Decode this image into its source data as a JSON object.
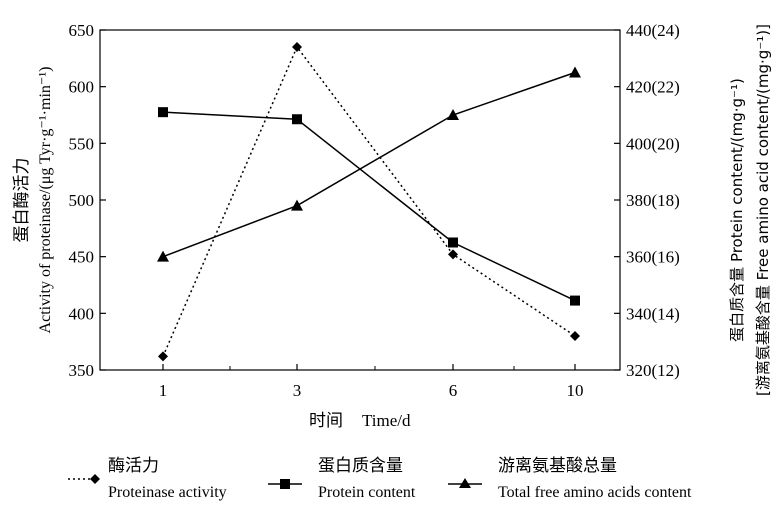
{
  "chart_data": {
    "type": "line",
    "categories": [
      "1",
      "3",
      "6",
      "10"
    ],
    "x_axis": {
      "label": "时间 Time/d",
      "label_cn": "时间",
      "label_en": "Time/d",
      "ticks": [
        "1",
        "3",
        "6",
        "10"
      ]
    },
    "y_left": {
      "label_cn": "蛋白酶活力",
      "label_en": "Activity of proteinase/(μg Tyr·g⁻¹·min⁻¹)",
      "ylim": [
        350,
        650
      ],
      "ticks": [
        350,
        400,
        450,
        500,
        550,
        600,
        650
      ],
      "tick_labels": [
        "350",
        "400",
        "450",
        "500",
        "550",
        "600",
        "650"
      ]
    },
    "y_right": {
      "label_line1": "蛋白质含量 Protein content/(mg·g⁻¹)",
      "label_line2": "[游离氨基酸含量 Free amino acid content/(mg·g⁻¹)]",
      "ylim": [
        320,
        440
      ],
      "ticks": [
        320,
        340,
        360,
        380,
        400,
        420,
        440
      ],
      "tick_labels": [
        "320(12)",
        "340(14)",
        "360(16)",
        "380(18)",
        "400(20)",
        "420(22)",
        "440(24)"
      ]
    },
    "series": [
      {
        "name": "酶活力 Proteinase activity",
        "name_cn": "酶活力",
        "name_en": "Proteinase activity",
        "axis": "left",
        "marker": "diamond",
        "line_style": "dotted",
        "values": [
          362,
          635,
          452,
          380
        ]
      },
      {
        "name": "蛋白质含量 Protein content",
        "name_cn": "蛋白质含量",
        "name_en": "Protein content",
        "axis": "right",
        "marker": "square",
        "line_style": "solid",
        "values": [
          411,
          408.5,
          365,
          344.5
        ]
      },
      {
        "name": "游离氨基酸总量 Total free amino acids content",
        "name_cn": "游离氨基酸总量",
        "name_en": "Total free amino acids content",
        "axis": "right",
        "unit_note": "right axis values in parentheses",
        "marker": "triangle",
        "line_style": "solid",
        "values": [
          16,
          17.8,
          21.0,
          22.5
        ]
      }
    ],
    "grid": false,
    "legend_position": "bottom"
  }
}
